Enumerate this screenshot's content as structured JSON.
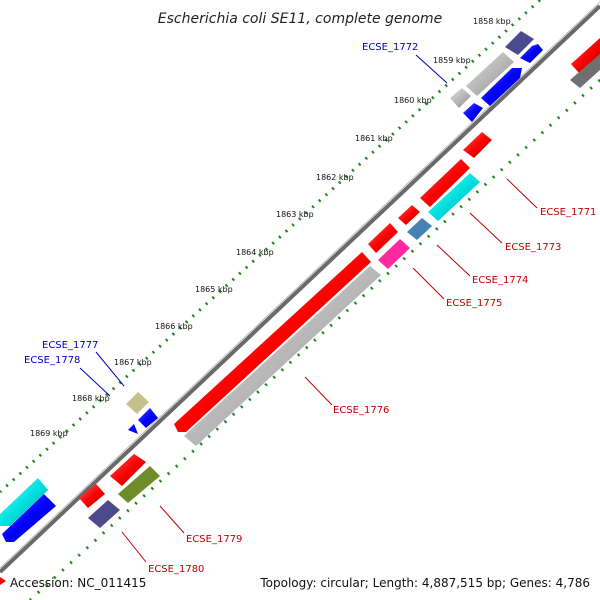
{
  "title": "Escherichia coli SE11, complete genome",
  "ticks": [
    "1858 kbp",
    "1859 kbp",
    "1860 kbp",
    "1861 kbp",
    "1862 kbp",
    "1863 kbp",
    "1864 kbp",
    "1865 kbp",
    "1866 kbp",
    "1867 kbp",
    "1868 kbp",
    "1869 kbp"
  ],
  "genes_forward": [
    {
      "id": "ECSE_1772",
      "color": "#0000ff",
      "label": "ECSE_1772"
    },
    {
      "id": "ECSE_1777",
      "color": "#0000ff",
      "label": "ECSE_1777"
    },
    {
      "id": "ECSE_1778",
      "color": "#0000ff",
      "label": "ECSE_1778"
    }
  ],
  "genes_reverse": [
    {
      "id": "ECSE_1771",
      "color": "#ff0000",
      "label": "ECSE_1771"
    },
    {
      "id": "ECSE_1773",
      "color": "#ff0000",
      "label": "ECSE_1773"
    },
    {
      "id": "ECSE_1774",
      "color": "#ff0000",
      "label": "ECSE_1774"
    },
    {
      "id": "ECSE_1775",
      "color": "#ff0000",
      "label": "ECSE_1775"
    },
    {
      "id": "ECSE_1776",
      "color": "#ff0000",
      "label": "ECSE_1776"
    },
    {
      "id": "ECSE_1779",
      "color": "#ff0000",
      "label": "ECSE_1779"
    },
    {
      "id": "ECSE_1780",
      "color": "#ff0000",
      "label": "ECSE_1780"
    }
  ],
  "footer": {
    "accession": "Accession: NC_011415",
    "topology": "Topology: circular; Length: 4,887,515 bp; Genes: 4,786"
  },
  "colors": {
    "backbone": "#808080",
    "tick": "#1a8a1a",
    "red": "#ff0000",
    "blue": "#0000ff",
    "gray": "#b4b4b4",
    "cyan": "#00d8d8",
    "steelblue": "#4682b4",
    "magenta": "#ff2aa0",
    "navy": "#4a4a8c",
    "khaki": "#c8c08c",
    "olive": "#6e8c28",
    "darkgray": "#707070"
  }
}
